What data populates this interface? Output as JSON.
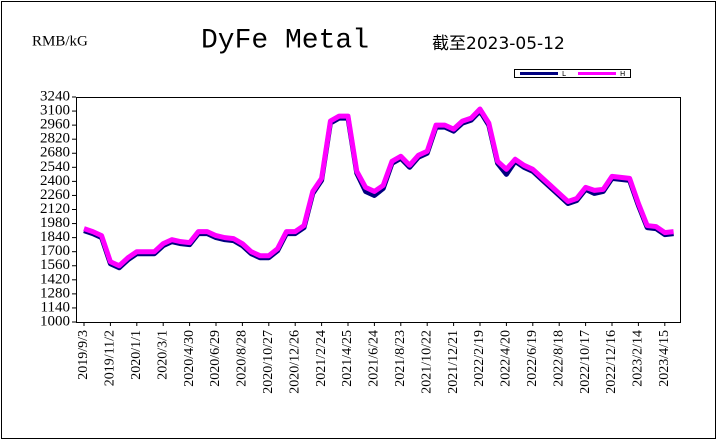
{
  "chart_data": {
    "type": "line",
    "title": "DyFe Metal",
    "y_label": "RMB/kG",
    "annotation": "截至2023-05-12",
    "categories": [
      "2019/9/3",
      null,
      null,
      "2019/11/2",
      null,
      null,
      "2020/1/1",
      null,
      null,
      "2020/3/1",
      null,
      null,
      "2020/4/30",
      null,
      null,
      "2020/6/29",
      null,
      null,
      "2020/8/28",
      null,
      null,
      "2020/10/27",
      null,
      null,
      "2020/12/26",
      null,
      null,
      "2021/2/24",
      null,
      null,
      "2021/4/25",
      null,
      null,
      "2021/6/24",
      null,
      null,
      "2021/8/23",
      null,
      null,
      "2021/10/22",
      null,
      null,
      "2021/12/21",
      null,
      null,
      "2022/2/19",
      null,
      null,
      "2022/4/20",
      null,
      null,
      "2022/6/19",
      null,
      null,
      "2022/8/18",
      null,
      null,
      "2022/10/17",
      null,
      null,
      "2022/12/16",
      null,
      null,
      "2023/2/14",
      null,
      null,
      "2023/4/15",
      null
    ],
    "series": [
      {
        "name": "L",
        "color": "#000080",
        "values": [
          1910,
          1880,
          1840,
          1580,
          1540,
          1620,
          1680,
          1680,
          1680,
          1760,
          1800,
          1780,
          1770,
          1880,
          1880,
          1840,
          1820,
          1810,
          1760,
          1680,
          1640,
          1640,
          1710,
          1880,
          1880,
          1940,
          2280,
          2410,
          2980,
          3030,
          3030,
          2480,
          2300,
          2260,
          2330,
          2580,
          2630,
          2540,
          2640,
          2680,
          2940,
          2940,
          2900,
          2980,
          3010,
          3100,
          2960,
          2580,
          2470,
          2600,
          2540,
          2500,
          2420,
          2340,
          2260,
          2180,
          2210,
          2320,
          2280,
          2300,
          2430,
          2420,
          2410,
          2160,
          1940,
          1930,
          1870,
          1880
        ]
      },
      {
        "name": "H",
        "color": "#ff00ff",
        "values": [
          1930,
          1900,
          1860,
          1600,
          1560,
          1640,
          1700,
          1700,
          1700,
          1780,
          1820,
          1800,
          1790,
          1900,
          1900,
          1860,
          1840,
          1830,
          1780,
          1700,
          1660,
          1660,
          1730,
          1900,
          1900,
          1960,
          2300,
          2430,
          3000,
          3050,
          3050,
          2500,
          2340,
          2300,
          2360,
          2600,
          2650,
          2560,
          2660,
          2700,
          2960,
          2960,
          2920,
          3000,
          3030,
          3120,
          2980,
          2600,
          2520,
          2620,
          2560,
          2520,
          2440,
          2360,
          2280,
          2200,
          2230,
          2340,
          2310,
          2320,
          2450,
          2440,
          2430,
          2180,
          1960,
          1950,
          1890,
          1900
        ]
      }
    ],
    "ylim": [
      1000,
      3240
    ],
    "yticks": [
      1000,
      1140,
      1280,
      1420,
      1560,
      1700,
      1840,
      1980,
      2120,
      2260,
      2400,
      2540,
      2680,
      2820,
      2960,
      3100,
      3240
    ]
  }
}
